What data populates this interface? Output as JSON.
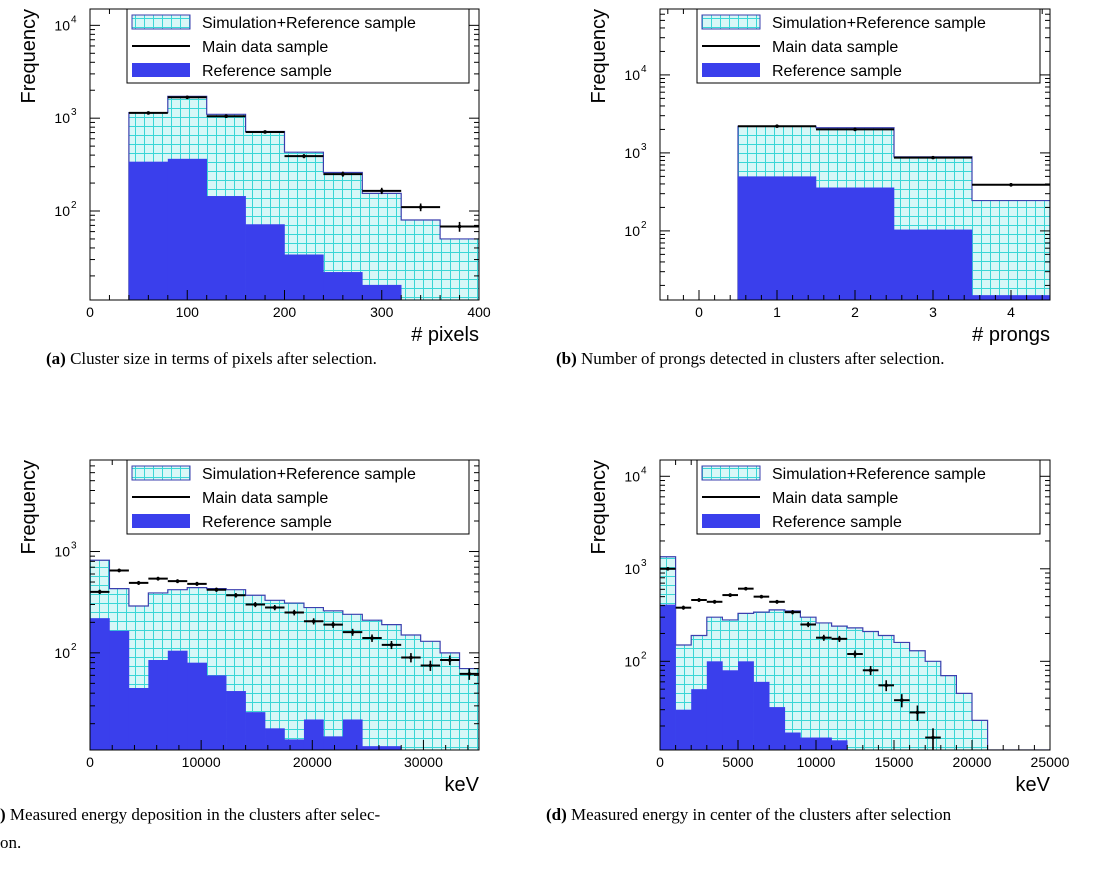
{
  "legend": {
    "sim_ref": "Simulation+Reference sample",
    "main": "Main data sample",
    "ref": "Reference sample"
  },
  "colors": {
    "sim_fill": "#d8f7f7",
    "sim_grid": "#3ad6d6",
    "sim_line": "#3b3fae",
    "ref_fill": "#3a3fec",
    "data": "#000000"
  },
  "captions": {
    "a_label": "(a)",
    "a_text": "Cluster size in terms of pixels after selection.",
    "b_label": "(b)",
    "b_text": "Number of prongs detected in clusters after selection.",
    "c_label": ")",
    "c_text": "Measured energy deposition in the clusters after selec-",
    "c_text2": "on.",
    "d_label": "(d)",
    "d_text": "Measured energy in center of the clusters after selection"
  },
  "chart_data": [
    {
      "id": "a",
      "type": "histogram",
      "ylabel": "Frequency",
      "xlabel": "# pixels",
      "log_y": true,
      "xlim": [
        0,
        400
      ],
      "ylim": [
        11,
        15000
      ],
      "xticks": [
        0,
        100,
        200,
        300,
        400
      ],
      "yticks": [
        {
          "v": 100,
          "exp": "2"
        },
        {
          "v": 1000,
          "exp": "3"
        },
        {
          "v": 10000,
          "exp": "4"
        }
      ],
      "bins": [
        40,
        80,
        120,
        160,
        200,
        240,
        280,
        320,
        360,
        400
      ],
      "sim_ref": [
        1150,
        1720,
        1100,
        720,
        430,
        260,
        155,
        80,
        50
      ],
      "reference": [
        340,
        365,
        145,
        72,
        34,
        22,
        16,
        0,
        0
      ],
      "data_x": [
        60,
        100,
        140,
        180,
        220,
        260,
        300,
        340,
        380
      ],
      "data_y": [
        1140,
        1680,
        1050,
        710,
        390,
        250,
        165,
        110,
        68
      ]
    },
    {
      "id": "b",
      "type": "histogram",
      "ylabel": "Frequency",
      "xlabel": "# prongs",
      "log_y": true,
      "xlim": [
        -0.5,
        4.5
      ],
      "ylim": [
        13,
        70000
      ],
      "xticks": [
        0,
        1,
        2,
        3,
        4
      ],
      "yticks": [
        {
          "v": 100,
          "exp": "2"
        },
        {
          "v": 1000,
          "exp": "3"
        },
        {
          "v": 10000,
          "exp": "4"
        }
      ],
      "bins": [
        0.5,
        1.5,
        2.5,
        3.5,
        4.5
      ],
      "sim_ref": [
        2200,
        2100,
        890,
        245
      ],
      "reference": [
        500,
        360,
        104,
        15
      ],
      "data_x": [
        1,
        2,
        3,
        4
      ],
      "data_y": [
        2200,
        2000,
        870,
        390
      ]
    },
    {
      "id": "c",
      "type": "histogram",
      "ylabel": "Frequency",
      "xlabel": "keV",
      "log_y": true,
      "xlim": [
        0,
        35000
      ],
      "ylim": [
        11,
        8000
      ],
      "xticks": [
        10000,
        20000,
        30000
      ],
      "xticks_extra": [
        0
      ],
      "yticks": [
        {
          "v": 100,
          "exp": "2"
        },
        {
          "v": 1000,
          "exp": "3"
        }
      ],
      "bins": [
        0,
        1750,
        3500,
        5250,
        7000,
        8750,
        10500,
        12250,
        14000,
        15750,
        17500,
        19250,
        21000,
        22750,
        24500,
        26250,
        28000,
        29750,
        31500,
        33250,
        35000
      ],
      "sim_ref": [
        820,
        430,
        290,
        390,
        420,
        440,
        430,
        420,
        370,
        330,
        310,
        280,
        260,
        240,
        210,
        190,
        150,
        130,
        100,
        70
      ],
      "reference": [
        220,
        165,
        45,
        85,
        105,
        80,
        60,
        42,
        26,
        18,
        14,
        22,
        15,
        22,
        12,
        12,
        0,
        0,
        0,
        0
      ],
      "data_x": [
        875,
        2625,
        4375,
        6125,
        7875,
        9625,
        11375,
        13125,
        14875,
        16625,
        18375,
        20125,
        21875,
        23625,
        25375,
        27125,
        28875,
        30625,
        32375,
        34125
      ],
      "data_y": [
        400,
        650,
        490,
        540,
        510,
        480,
        420,
        370,
        300,
        280,
        250,
        205,
        190,
        160,
        140,
        120,
        90,
        75,
        85,
        62
      ]
    },
    {
      "id": "d",
      "type": "histogram",
      "ylabel": "Frequency",
      "xlabel": "keV",
      "log_y": true,
      "xlim": [
        0,
        25000
      ],
      "ylim": [
        11,
        15000
      ],
      "xticks": [
        0,
        5000,
        10000,
        15000,
        20000,
        25000
      ],
      "yticks": [
        {
          "v": 100,
          "exp": "2"
        },
        {
          "v": 1000,
          "exp": "3"
        },
        {
          "v": 10000,
          "exp": "4"
        }
      ],
      "bins": [
        0,
        1000,
        2000,
        3000,
        4000,
        5000,
        6000,
        7000,
        8000,
        9000,
        10000,
        11000,
        12000,
        13000,
        14000,
        15000,
        16000,
        17000,
        18000,
        19000,
        20000,
        21000,
        22000,
        23000,
        24000,
        25000
      ],
      "sim_ref": [
        1350,
        150,
        190,
        300,
        280,
        330,
        340,
        360,
        350,
        300,
        260,
        240,
        230,
        210,
        190,
        160,
        130,
        100,
        70,
        45,
        23,
        0,
        0,
        0,
        0
      ],
      "reference": [
        410,
        30,
        50,
        100,
        80,
        100,
        60,
        32,
        17,
        15,
        15,
        14,
        0,
        0,
        0,
        0,
        0,
        0,
        0,
        0,
        0,
        0,
        0,
        0,
        0
      ],
      "data_x": [
        500,
        1500,
        2500,
        3500,
        4500,
        5500,
        6500,
        7500,
        8500,
        9500,
        10500,
        11500,
        12500,
        13500,
        14500,
        15500,
        16500,
        17500
      ],
      "data_y": [
        1000,
        380,
        460,
        440,
        520,
        610,
        500,
        440,
        340,
        250,
        180,
        175,
        120,
        80,
        55,
        38,
        28,
        15
      ]
    }
  ]
}
